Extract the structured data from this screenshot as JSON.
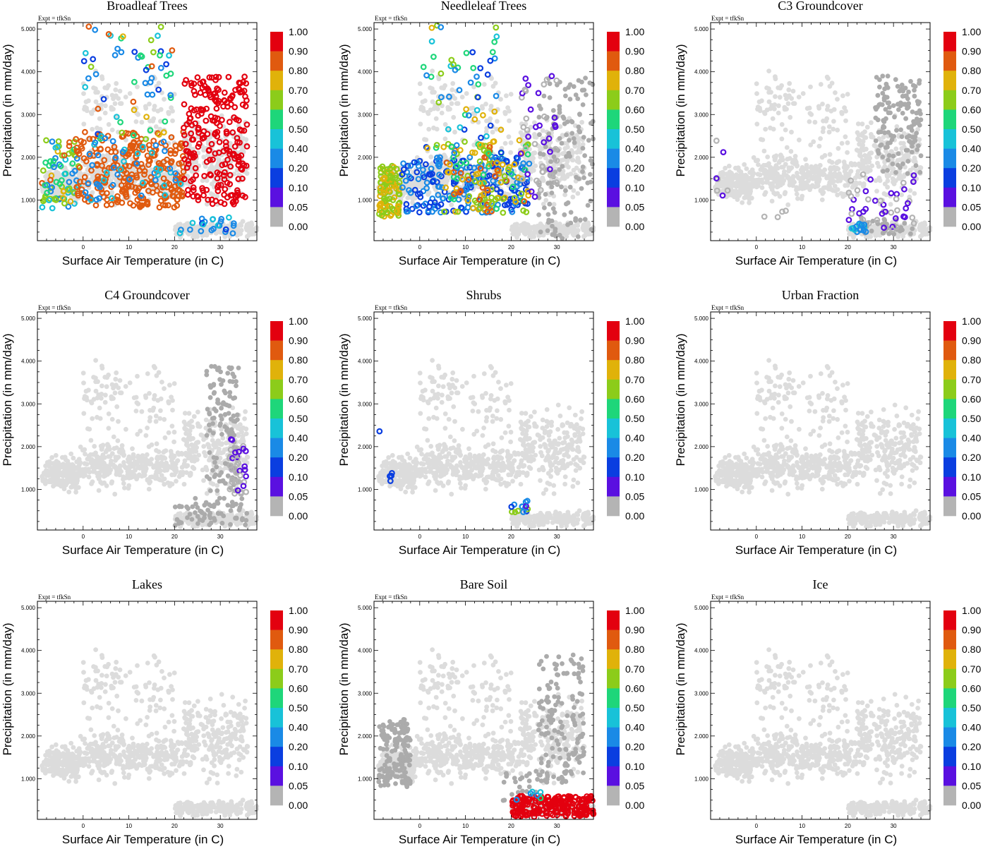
{
  "figure": {
    "expt_label": "Expt = tfkSn",
    "colorbar": {
      "labels": [
        "1.00",
        "0.90",
        "0.80",
        "0.70",
        "0.60",
        "0.50",
        "0.40",
        "0.20",
        "0.10",
        "0.05",
        "0.00"
      ],
      "colors": [
        "#e3000f",
        "#e05a0f",
        "#e0b20a",
        "#8ccc1a",
        "#1ed67a",
        "#18c2d8",
        "#1a8ae6",
        "#0a3ee0",
        "#5a10e0",
        "#b4b4b4"
      ]
    },
    "base_color": "#dcdcdc",
    "dim_color": "#ababab"
  },
  "chart_data": [
    {
      "type": "scatter",
      "title": "Broadleaf Trees",
      "xlabel": "Surface Air Temperature (in C)",
      "ylabel": "Precipitation (in mm/day)",
      "xlim": [
        -10,
        38
      ],
      "ylim": [
        0.05,
        5.15
      ],
      "xticks": [
        "0",
        "10",
        "20",
        "30"
      ],
      "yticks": [
        "1.000",
        "2.000",
        "3.000",
        "4.000",
        "5.000"
      ],
      "colored_regions": [
        {
          "x": [
            -9,
            -1
          ],
          "y": [
            0.8,
            2.4
          ],
          "c": [
            0.3,
            0.85
          ],
          "n": 80
        },
        {
          "x": [
            -2,
            22
          ],
          "y": [
            0.8,
            2.6
          ],
          "c": [
            0.8,
            0.9
          ],
          "n": 260
        },
        {
          "x": [
            0,
            20
          ],
          "y": [
            2.4,
            5.1
          ],
          "c": [
            0.1,
            0.9
          ],
          "n": 60
        },
        {
          "x": [
            0,
            22
          ],
          "y": [
            1,
            2.5
          ],
          "c": [
            0.2,
            0.5
          ],
          "n": 50
        },
        {
          "x": [
            22,
            36
          ],
          "y": [
            0.9,
            3.9
          ],
          "c": [
            0.9,
            1.0
          ],
          "n": 230
        },
        {
          "x": [
            21,
            33
          ],
          "y": [
            0.2,
            0.6
          ],
          "c": [
            0.1,
            0.45
          ],
          "n": 24
        }
      ],
      "gray_regions": []
    },
    {
      "type": "scatter",
      "title": "Needleleaf Trees",
      "xlabel": "Surface Air Temperature (in C)",
      "ylabel": "Precipitation (in mm/day)",
      "xlim": [
        -10,
        38
      ],
      "ylim": [
        0.05,
        5.15
      ],
      "xticks": [
        "0",
        "10",
        "20",
        "30"
      ],
      "yticks": [
        "1.000",
        "2.000",
        "3.000",
        "4.000",
        "5.000"
      ],
      "colored_regions": [
        {
          "x": [
            -9,
            -4
          ],
          "y": [
            0.6,
            1.8
          ],
          "c": [
            0.6,
            0.8
          ],
          "n": 110
        },
        {
          "x": [
            -4,
            24
          ],
          "y": [
            0.7,
            2.0
          ],
          "c": [
            0.1,
            0.3
          ],
          "n": 220
        },
        {
          "x": [
            5,
            24
          ],
          "y": [
            0.7,
            2.4
          ],
          "c": [
            0.55,
            0.85
          ],
          "n": 130
        },
        {
          "x": [
            0,
            18
          ],
          "y": [
            2.0,
            5.1
          ],
          "c": [
            0.1,
            0.8
          ],
          "n": 60
        },
        {
          "x": [
            22,
            30
          ],
          "y": [
            1.0,
            3.9
          ],
          "c": [
            0.02,
            0.08
          ],
          "n": 45
        }
      ],
      "gray_regions": [
        {
          "x": [
            26,
            38
          ],
          "y": [
            0.1,
            3.9
          ],
          "n": 140
        }
      ]
    },
    {
      "type": "scatter",
      "title": "C3 Groundcover",
      "xlabel": "Surface Air Temperature (in C)",
      "ylabel": "Precipitation (in mm/day)",
      "xlim": [
        -10,
        38
      ],
      "ylim": [
        0.05,
        5.15
      ],
      "xticks": [
        "0",
        "10",
        "20",
        "30"
      ],
      "yticks": [
        "1.000",
        "2.000",
        "3.000",
        "4.000",
        "5.000"
      ],
      "colored_regions": [
        {
          "x": [
            -9,
            -6
          ],
          "y": [
            1.0,
            2.4
          ],
          "c": [
            0.02,
            0.08
          ],
          "n": 7
        },
        {
          "x": [
            1,
            8
          ],
          "y": [
            0.6,
            0.75
          ],
          "c": [
            0.02,
            0.08
          ],
          "n": 4
        },
        {
          "x": [
            20,
            36
          ],
          "y": [
            0.3,
            1.6
          ],
          "c": [
            0.02,
            0.08
          ],
          "n": 45
        },
        {
          "x": [
            20,
            24
          ],
          "y": [
            0.25,
            0.45
          ],
          "c": [
            0.25,
            0.45
          ],
          "n": 14
        }
      ],
      "gray_regions": [
        {
          "x": [
            26,
            36
          ],
          "y": [
            1.6,
            3.9
          ],
          "n": 140
        },
        {
          "x": [
            22,
            35
          ],
          "y": [
            0.2,
            0.6
          ],
          "n": 30
        }
      ]
    },
    {
      "type": "scatter",
      "title": "C4 Groundcover",
      "xlabel": "Surface Air Temperature (in C)",
      "ylabel": "Precipitation (in mm/day)",
      "xlim": [
        -10,
        38
      ],
      "ylim": [
        0.05,
        5.15
      ],
      "xticks": [
        "0",
        "10",
        "20",
        "30"
      ],
      "yticks": [
        "1.000",
        "2.000",
        "3.000",
        "4.000",
        "5.000"
      ],
      "colored_regions": [
        {
          "x": [
            32,
            36
          ],
          "y": [
            0.9,
            2.2
          ],
          "c": [
            0.02,
            0.08
          ],
          "n": 40
        }
      ],
      "gray_regions": [
        {
          "x": [
            27,
            34
          ],
          "y": [
            0.9,
            3.9
          ],
          "n": 120
        },
        {
          "x": [
            20,
            36
          ],
          "y": [
            0.15,
            0.8
          ],
          "n": 70
        }
      ]
    },
    {
      "type": "scatter",
      "title": "Shrubs",
      "xlabel": "Surface Air Temperature (in C)",
      "ylabel": "Precipitation (in mm/day)",
      "xlim": [
        -10,
        38
      ],
      "ylim": [
        0.05,
        5.15
      ],
      "xticks": [
        "0",
        "10",
        "20",
        "30"
      ],
      "yticks": [
        "1.000",
        "2.000",
        "3.000",
        "4.000",
        "5.000"
      ],
      "colored_regions": [
        {
          "x": [
            -9,
            -8
          ],
          "y": [
            2.3,
            2.4
          ],
          "c": [
            0.15,
            0.2
          ],
          "n": 1
        },
        {
          "x": [
            -7,
            -6
          ],
          "y": [
            1.0,
            1.4
          ],
          "c": [
            0.1,
            0.15
          ],
          "n": 4
        },
        {
          "x": [
            20,
            24
          ],
          "y": [
            0.45,
            0.75
          ],
          "c": [
            0.05,
            0.7
          ],
          "n": 14
        }
      ],
      "gray_regions": []
    },
    {
      "type": "scatter",
      "title": "Urban Fraction",
      "xlabel": "Surface Air Temperature (in C)",
      "ylabel": "Precipitation (in mm/day)",
      "xlim": [
        -10,
        38
      ],
      "ylim": [
        0.05,
        5.15
      ],
      "xticks": [
        "0",
        "10",
        "20",
        "30"
      ],
      "yticks": [
        "1.000",
        "2.000",
        "3.000",
        "4.000",
        "5.000"
      ],
      "colored_regions": [],
      "gray_regions": []
    },
    {
      "type": "scatter",
      "title": "Lakes",
      "xlabel": "Surface Air Temperature (in C)",
      "ylabel": "Precipitation (in mm/day)",
      "xlim": [
        -10,
        38
      ],
      "ylim": [
        0.05,
        5.15
      ],
      "xticks": [
        "0",
        "10",
        "20",
        "30"
      ],
      "yticks": [
        "1.000",
        "2.000",
        "3.000",
        "4.000",
        "5.000"
      ],
      "colored_regions": [],
      "gray_regions": []
    },
    {
      "type": "scatter",
      "title": "Bare Soil",
      "xlabel": "Surface Air Temperature (in C)",
      "ylabel": "Precipitation (in mm/day)",
      "xlim": [
        -10,
        38
      ],
      "ylim": [
        0.05,
        5.15
      ],
      "xticks": [
        "0",
        "10",
        "20",
        "30"
      ],
      "yticks": [
        "1.000",
        "2.000",
        "3.000",
        "4.000",
        "5.000"
      ],
      "colored_regions": [
        {
          "x": [
            20,
            38
          ],
          "y": [
            0.1,
            0.6
          ],
          "c": [
            0.92,
            1.0
          ],
          "n": 220
        },
        {
          "x": [
            21,
            27
          ],
          "y": [
            0.5,
            0.7
          ],
          "c": [
            0.1,
            0.7
          ],
          "n": 6
        }
      ],
      "gray_regions": [
        {
          "x": [
            -9,
            -2
          ],
          "y": [
            0.8,
            2.4
          ],
          "n": 160
        },
        {
          "x": [
            26,
            36
          ],
          "y": [
            0.9,
            3.9
          ],
          "n": 150
        },
        {
          "x": [
            18,
            26
          ],
          "y": [
            0.4,
            1.2
          ],
          "n": 30
        }
      ]
    },
    {
      "type": "scatter",
      "title": "Ice",
      "xlabel": "Surface Air Temperature (in C)",
      "ylabel": "Precipitation (in mm/day)",
      "xlim": [
        -10,
        38
      ],
      "ylim": [
        0.05,
        5.15
      ],
      "xticks": [
        "0",
        "10",
        "20",
        "30"
      ],
      "yticks": [
        "1.000",
        "2.000",
        "3.000",
        "4.000",
        "5.000"
      ],
      "colored_regions": [],
      "gray_regions": []
    }
  ]
}
